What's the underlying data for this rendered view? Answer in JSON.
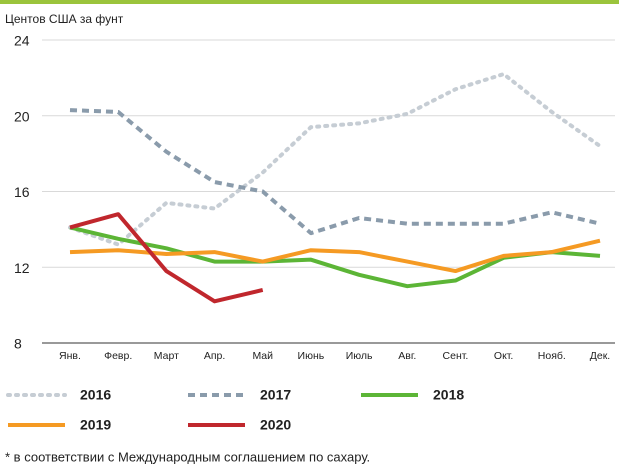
{
  "chart_data": {
    "type": "line",
    "y_label": "Центов США за фунт",
    "categories": [
      "Янв.",
      "Февр.",
      "Март",
      "Апр.",
      "Май",
      "Июнь",
      "Июль",
      "Авг.",
      "Сент.",
      "Окт.",
      "Нояб.",
      "Дек."
    ],
    "series": [
      {
        "name": "2016",
        "color": "#c6cdd4",
        "dash": "dotted",
        "values": [
          14.1,
          13.2,
          15.4,
          15.1,
          17.0,
          19.4,
          19.6,
          20.1,
          21.4,
          22.2,
          20.2,
          18.4
        ]
      },
      {
        "name": "2017",
        "color": "#8a9bab",
        "dash": "dashed",
        "values": [
          20.3,
          20.2,
          18.1,
          16.5,
          16.0,
          13.8,
          14.6,
          14.3,
          14.3,
          14.3,
          14.9,
          14.3
        ]
      },
      {
        "name": "2018",
        "color": "#5cb536",
        "dash": "solid",
        "values": [
          14.1,
          13.5,
          13.0,
          12.3,
          12.3,
          12.4,
          11.6,
          11.0,
          11.3,
          12.5,
          12.8,
          12.6
        ]
      },
      {
        "name": "2019",
        "color": "#f59a23",
        "dash": "solid",
        "values": [
          12.8,
          12.9,
          12.7,
          12.8,
          12.3,
          12.9,
          12.8,
          12.3,
          11.8,
          12.6,
          12.8,
          13.4
        ]
      },
      {
        "name": "2020",
        "color": "#c0272d",
        "dash": "solid",
        "values": [
          14.1,
          14.8,
          11.8,
          10.2,
          10.8,
          null,
          null,
          null,
          null,
          null,
          null,
          null
        ]
      }
    ],
    "ylim": [
      8,
      24
    ],
    "yticks": [
      8,
      12,
      16,
      20,
      24
    ],
    "grid": true,
    "footnote": "* в соответствии с Международным соглашением по сахару."
  }
}
